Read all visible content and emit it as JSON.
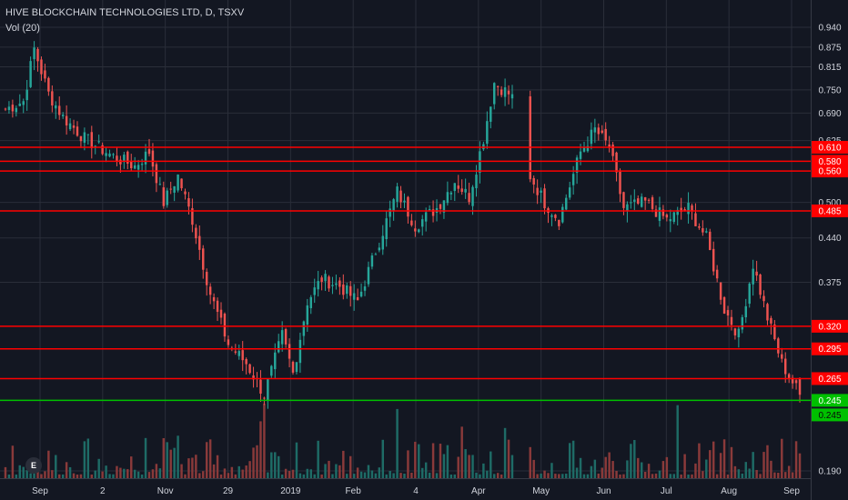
{
  "header": {
    "title": "HIVE BLOCKCHAIN TECHNOLOGIES LTD, D, TSXV",
    "volume_label": "Vol (20)"
  },
  "logo": {
    "glyph": "E"
  },
  "colors": {
    "background": "#131722",
    "grid": "#2a2e39",
    "up": "#26a69a",
    "down": "#ef5350",
    "volume_up": "#1e6b66",
    "volume_down": "#8a3a3a",
    "resistance_line": "#ff0000",
    "support_line": "#00c000"
  },
  "chart_data": {
    "type": "candlestick",
    "title": "HIVE BLOCKCHAIN TECHNOLOGIES LTD, D, TSXV",
    "interval": "D",
    "exchange": "TSXV",
    "y_scale": "log",
    "ylim": [
      0.18,
      0.98
    ],
    "y_ticks": [
      {
        "value": 0.94,
        "label": "0.940"
      },
      {
        "value": 0.875,
        "label": "0.875"
      },
      {
        "value": 0.815,
        "label": "0.815"
      },
      {
        "value": 0.75,
        "label": "0.750"
      },
      {
        "value": 0.69,
        "label": "0.690"
      },
      {
        "value": 0.625,
        "label": "0.625"
      },
      {
        "value": 0.5,
        "label": "0.500"
      },
      {
        "value": 0.44,
        "label": "0.440"
      },
      {
        "value": 0.375,
        "label": "0.375"
      },
      {
        "value": 0.19,
        "label": "0.190"
      }
    ],
    "x_ticks": [
      "Sep",
      "2",
      "Nov",
      "29",
      "2019",
      "Feb",
      "4",
      "Apr",
      "May",
      "Jun",
      "Jul",
      "Aug",
      "Sep"
    ],
    "horizontal_levels": [
      {
        "value": 0.61,
        "label": "0.610",
        "kind": "resistance"
      },
      {
        "value": 0.58,
        "label": "0.580",
        "kind": "resistance"
      },
      {
        "value": 0.56,
        "label": "0.560",
        "kind": "resistance"
      },
      {
        "value": 0.485,
        "label": "0.485",
        "kind": "resistance"
      },
      {
        "value": 0.32,
        "label": "0.320",
        "kind": "resistance"
      },
      {
        "value": 0.295,
        "label": "0.295",
        "kind": "resistance"
      },
      {
        "value": 0.265,
        "label": "0.265",
        "kind": "resistance"
      },
      {
        "value": 0.245,
        "label": "0.245",
        "kind": "support"
      }
    ],
    "current_price": {
      "value": 0.245,
      "label": "0.245"
    },
    "anchors": [
      {
        "i": 0,
        "c": 0.7
      },
      {
        "i": 5,
        "c": 0.72
      },
      {
        "i": 8,
        "c": 0.87
      },
      {
        "i": 12,
        "c": 0.74
      },
      {
        "i": 16,
        "c": 0.68
      },
      {
        "i": 22,
        "c": 0.63
      },
      {
        "i": 30,
        "c": 0.59
      },
      {
        "i": 36,
        "c": 0.57
      },
      {
        "i": 40,
        "c": 0.6
      },
      {
        "i": 44,
        "c": 0.5
      },
      {
        "i": 48,
        "c": 0.55
      },
      {
        "i": 52,
        "c": 0.47
      },
      {
        "i": 57,
        "c": 0.36
      },
      {
        "i": 62,
        "c": 0.3
      },
      {
        "i": 67,
        "c": 0.28
      },
      {
        "i": 72,
        "c": 0.25
      },
      {
        "i": 77,
        "c": 0.31
      },
      {
        "i": 80,
        "c": 0.27
      },
      {
        "i": 84,
        "c": 0.35
      },
      {
        "i": 88,
        "c": 0.38
      },
      {
        "i": 93,
        "c": 0.37
      },
      {
        "i": 98,
        "c": 0.35
      },
      {
        "i": 103,
        "c": 0.42
      },
      {
        "i": 109,
        "c": 0.52
      },
      {
        "i": 114,
        "c": 0.46
      },
      {
        "i": 120,
        "c": 0.49
      },
      {
        "i": 125,
        "c": 0.54
      },
      {
        "i": 129,
        "c": 0.51
      },
      {
        "i": 133,
        "c": 0.63
      },
      {
        "i": 136,
        "c": 0.77
      },
      {
        "i": 140,
        "c": 0.74
      },
      {
        "i": 143,
        "c": 0.71
      },
      {
        "i": 146,
        "c": 0.55
      },
      {
        "i": 150,
        "c": 0.5
      },
      {
        "i": 154,
        "c": 0.47
      },
      {
        "i": 160,
        "c": 0.6
      },
      {
        "i": 164,
        "c": 0.65
      },
      {
        "i": 168,
        "c": 0.61
      },
      {
        "i": 172,
        "c": 0.49
      },
      {
        "i": 178,
        "c": 0.5
      },
      {
        "i": 184,
        "c": 0.47
      },
      {
        "i": 190,
        "c": 0.49
      },
      {
        "i": 195,
        "c": 0.44
      },
      {
        "i": 200,
        "c": 0.34
      },
      {
        "i": 204,
        "c": 0.31
      },
      {
        "i": 208,
        "c": 0.4
      },
      {
        "i": 212,
        "c": 0.33
      },
      {
        "i": 216,
        "c": 0.28
      },
      {
        "i": 221,
        "c": 0.25
      }
    ],
    "gaps": [
      {
        "from": 142,
        "to": 145
      }
    ]
  }
}
